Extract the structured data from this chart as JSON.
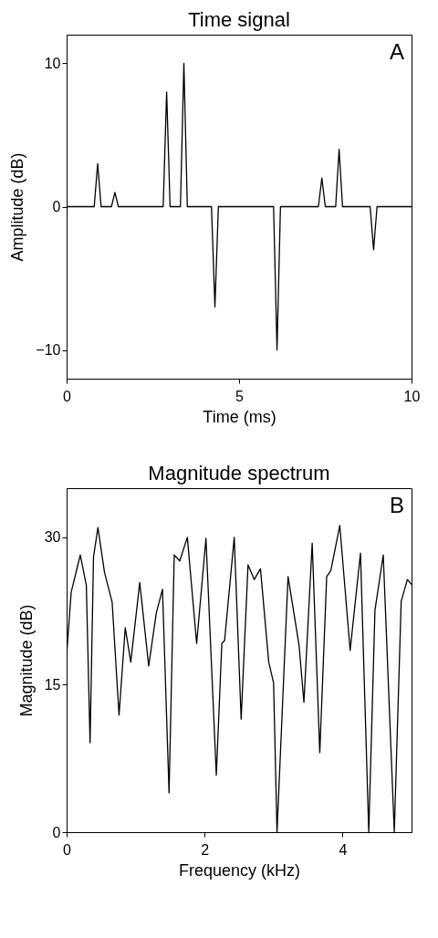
{
  "chart_data": [
    {
      "type": "line",
      "title": "Time signal",
      "xlabel": "Time (ms)",
      "ylabel": "Amplitude (dB)",
      "annotations": [
        "A"
      ],
      "grid": false,
      "x": [
        0,
        0.8,
        0.9,
        1.0,
        1.3,
        1.4,
        1.5,
        2.8,
        2.9,
        3.0,
        3.3,
        3.4,
        3.5,
        4.2,
        4.3,
        4.4,
        6.0,
        6.1,
        6.2,
        7.3,
        7.4,
        7.5,
        7.8,
        7.9,
        8.0,
        8.8,
        8.9,
        9.0,
        10
      ],
      "series": [
        {
          "color": "#000000",
          "values": [
            0,
            0,
            3,
            0,
            0,
            1,
            0,
            0,
            8,
            0,
            0,
            10,
            0,
            0,
            -7,
            0,
            0,
            -10,
            0,
            0,
            2,
            0,
            0,
            4,
            0,
            0,
            -3,
            0,
            0
          ]
        }
      ],
      "xlim": [
        0,
        10
      ],
      "xticks": [
        0,
        5,
        10
      ],
      "ylim": [
        -12,
        12
      ],
      "yticks": [
        -10,
        0,
        10
      ]
    },
    {
      "type": "line",
      "title": "Magnitude spectrum",
      "xlabel": "Frequency (kHz)",
      "ylabel": "Magnitude (dB)",
      "annotations": [
        "B"
      ],
      "grid": false,
      "x": [
        0,
        0.066,
        0.198,
        0.286,
        0.34,
        0.39,
        0.454,
        0.55,
        0.66,
        0.76,
        0.85,
        0.93,
        1.06,
        1.19,
        1.3,
        1.39,
        1.485,
        1.56,
        1.64,
        1.75,
        1.885,
        2.02,
        2.17,
        2.25,
        2.29,
        2.43,
        2.53,
        2.63,
        2.72,
        2.81,
        2.93,
        3.0,
        3.05,
        3.21,
        3.37,
        3.44,
        3.56,
        3.67,
        3.77,
        3.83,
        3.96,
        4.11,
        4.26,
        4.38,
        4.47,
        4.59,
        4.75,
        4.85,
        4.94,
        5.0
      ],
      "series": [
        {
          "color": "#000000",
          "values": [
            18,
            24.4,
            28.2,
            25.1,
            9.1,
            28,
            31,
            26.4,
            23.4,
            11.9,
            20.8,
            17.3,
            25.4,
            16.9,
            22.3,
            24.7,
            4,
            28.2,
            27.6,
            30,
            19.2,
            29.9,
            5.8,
            19.2,
            19.5,
            30,
            11.5,
            27.2,
            25.7,
            26.8,
            17.3,
            15.2,
            0,
            26,
            19,
            13.2,
            29.4,
            8.1,
            26,
            26.6,
            31.2,
            18.5,
            28.4,
            0,
            22.6,
            28.2,
            0,
            23.5,
            25.7,
            25.2
          ]
        }
      ],
      "xlim": [
        0,
        5
      ],
      "xticks": [
        0,
        2,
        4
      ],
      "ylim": [
        0,
        35
      ],
      "yticks": [
        0,
        15,
        30
      ]
    }
  ]
}
